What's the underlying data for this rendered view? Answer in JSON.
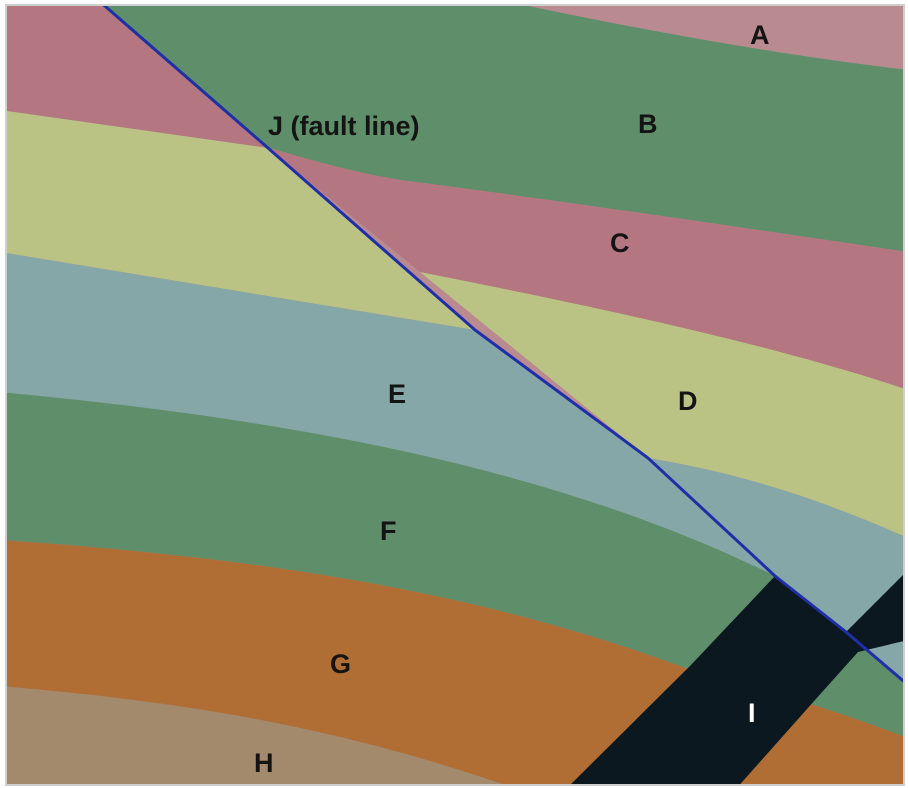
{
  "diagram": {
    "colors": {
      "A": "#b98a90",
      "B": "#5f8e6a",
      "C": "#b47680",
      "D": "#bac383",
      "E": "#86a7a7",
      "F": "#5f8e6a",
      "G": "#b06d34",
      "H": "#a38a6d",
      "I": "#0b1820",
      "J": "#1f2fa8",
      "border": "#cfcfcf"
    },
    "labels": {
      "A": "A",
      "B": "B",
      "C": "C",
      "D": "D",
      "E": "E",
      "F": "F",
      "G": "G",
      "H": "H",
      "I": "I",
      "J": "J (fault line)"
    }
  }
}
